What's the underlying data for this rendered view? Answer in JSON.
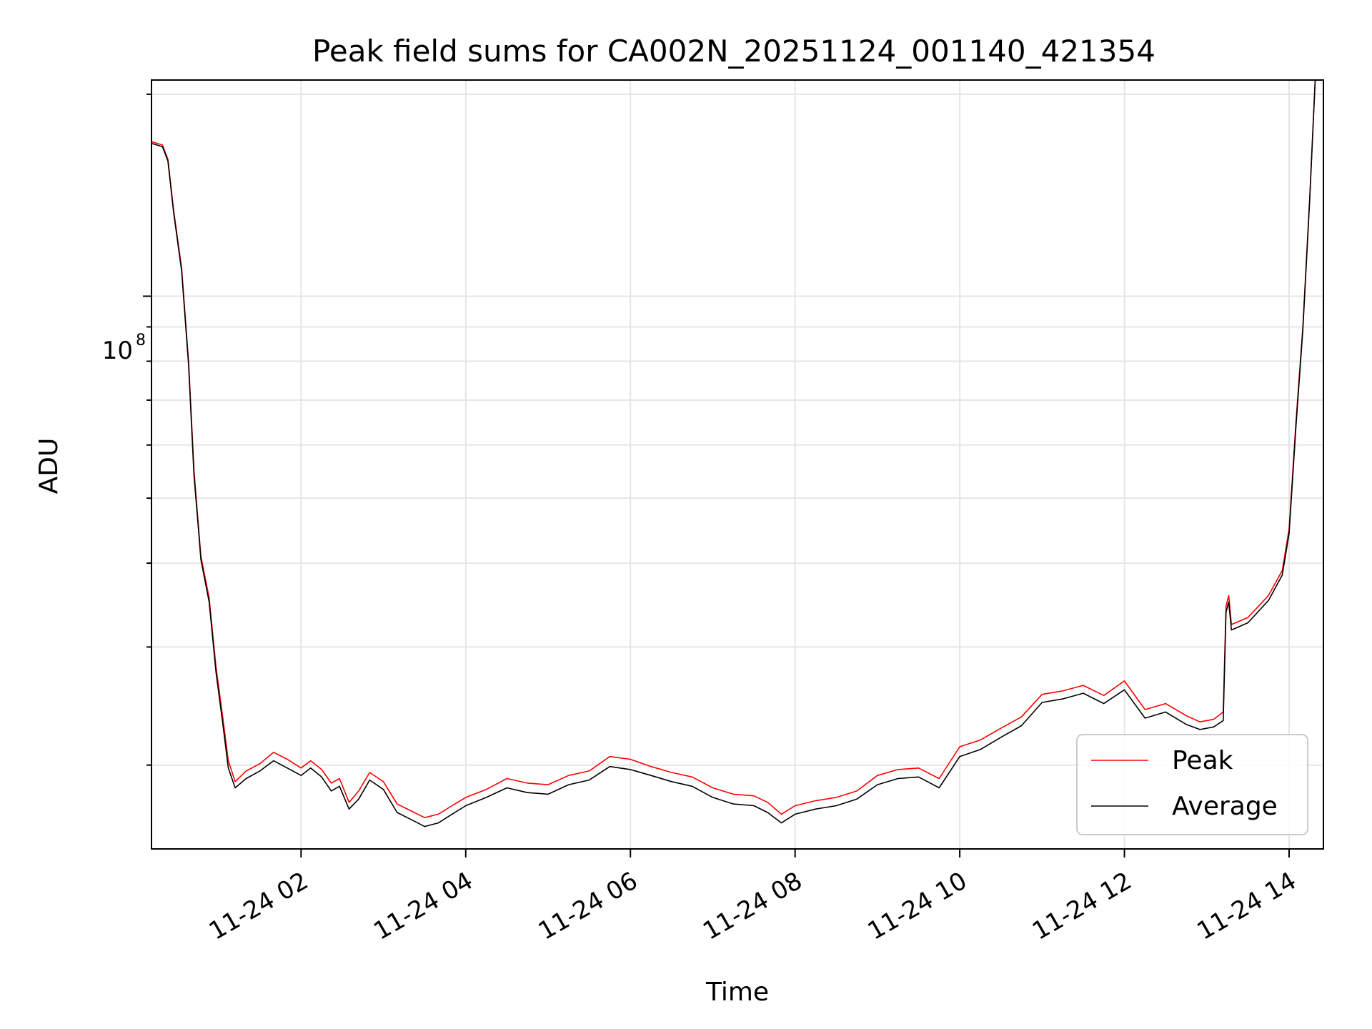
{
  "chart_data": {
    "type": "line",
    "title": "Peak field sums for CA002N_20251124_001140_421354",
    "xlabel": "Time",
    "ylabel": "ADU",
    "yscale": "log",
    "grid": true,
    "legend_position": "lower-right",
    "xlim": [
      "2025-11-24 00:11",
      "2025-11-24 14:25"
    ],
    "ylim": [
      15000000,
      210000000
    ],
    "x_ticks": [
      {
        "t": "2025-11-24 02:00",
        "label": "11-24 02"
      },
      {
        "t": "2025-11-24 04:00",
        "label": "11-24 04"
      },
      {
        "t": "2025-11-24 06:00",
        "label": "11-24 06"
      },
      {
        "t": "2025-11-24 08:00",
        "label": "11-24 08"
      },
      {
        "t": "2025-11-24 10:00",
        "label": "11-24 10"
      },
      {
        "t": "2025-11-24 12:00",
        "label": "11-24 12"
      },
      {
        "t": "2025-11-24 14:00",
        "label": "11-24 14"
      }
    ],
    "y_tick_label": {
      "base": "10",
      "exponent": "8"
    },
    "series": [
      {
        "name": "Peak",
        "color": "#ff0000",
        "points": [
          [
            "2025-11-24 00:11",
            170000000
          ],
          [
            "2025-11-24 00:19",
            168000000
          ],
          [
            "2025-11-24 00:23",
            160000000
          ],
          [
            "2025-11-24 00:27",
            135000000
          ],
          [
            "2025-11-24 00:33",
            110000000
          ],
          [
            "2025-11-24 00:38",
            80000000
          ],
          [
            "2025-11-24 00:42",
            55000000
          ],
          [
            "2025-11-24 00:45",
            46000000
          ],
          [
            "2025-11-24 00:47",
            41000000
          ],
          [
            "2025-11-24 00:53",
            35500000
          ],
          [
            "2025-11-24 00:58",
            28000000
          ],
          [
            "2025-11-24 01:03",
            23500000
          ],
          [
            "2025-11-24 01:07",
            20300000
          ],
          [
            "2025-11-24 01:12",
            18900000
          ],
          [
            "2025-11-24 01:20",
            19600000
          ],
          [
            "2025-11-24 01:30",
            20100000
          ],
          [
            "2025-11-24 01:40",
            20900000
          ],
          [
            "2025-11-24 01:50",
            20400000
          ],
          [
            "2025-11-24 02:00",
            19800000
          ],
          [
            "2025-11-24 02:07",
            20300000
          ],
          [
            "2025-11-24 02:15",
            19700000
          ],
          [
            "2025-11-24 02:22",
            18800000
          ],
          [
            "2025-11-24 02:28",
            19100000
          ],
          [
            "2025-11-24 02:35",
            17600000
          ],
          [
            "2025-11-24 02:42",
            18300000
          ],
          [
            "2025-11-24 02:50",
            19500000
          ],
          [
            "2025-11-24 03:00",
            18900000
          ],
          [
            "2025-11-24 03:10",
            17500000
          ],
          [
            "2025-11-24 03:20",
            17100000
          ],
          [
            "2025-11-24 03:30",
            16700000
          ],
          [
            "2025-11-24 03:40",
            16900000
          ],
          [
            "2025-11-24 03:50",
            17400000
          ],
          [
            "2025-11-24 04:00",
            17900000
          ],
          [
            "2025-11-24 04:15",
            18400000
          ],
          [
            "2025-11-24 04:30",
            19100000
          ],
          [
            "2025-11-24 04:45",
            18800000
          ],
          [
            "2025-11-24 05:00",
            18700000
          ],
          [
            "2025-11-24 05:15",
            19300000
          ],
          [
            "2025-11-24 05:30",
            19600000
          ],
          [
            "2025-11-24 05:45",
            20600000
          ],
          [
            "2025-11-24 06:00",
            20400000
          ],
          [
            "2025-11-24 06:15",
            19900000
          ],
          [
            "2025-11-24 06:30",
            19500000
          ],
          [
            "2025-11-24 06:45",
            19200000
          ],
          [
            "2025-11-24 07:00",
            18500000
          ],
          [
            "2025-11-24 07:15",
            18100000
          ],
          [
            "2025-11-24 07:30",
            18000000
          ],
          [
            "2025-11-24 07:40",
            17600000
          ],
          [
            "2025-11-24 07:50",
            16900000
          ],
          [
            "2025-11-24 08:00",
            17400000
          ],
          [
            "2025-11-24 08:15",
            17700000
          ],
          [
            "2025-11-24 08:30",
            17900000
          ],
          [
            "2025-11-24 08:45",
            18300000
          ],
          [
            "2025-11-24 09:00",
            19300000
          ],
          [
            "2025-11-24 09:15",
            19700000
          ],
          [
            "2025-11-24 09:30",
            19800000
          ],
          [
            "2025-11-24 09:45",
            19100000
          ],
          [
            "2025-11-24 10:00",
            21300000
          ],
          [
            "2025-11-24 10:15",
            21800000
          ],
          [
            "2025-11-24 10:30",
            22700000
          ],
          [
            "2025-11-24 10:45",
            23600000
          ],
          [
            "2025-11-24 11:00",
            25500000
          ],
          [
            "2025-11-24 11:15",
            25800000
          ],
          [
            "2025-11-24 11:30",
            26300000
          ],
          [
            "2025-11-24 11:45",
            25400000
          ],
          [
            "2025-11-24 12:00",
            26700000
          ],
          [
            "2025-11-24 12:15",
            24200000
          ],
          [
            "2025-11-24 12:30",
            24700000
          ],
          [
            "2025-11-24 12:45",
            23700000
          ],
          [
            "2025-11-24 12:55",
            23200000
          ],
          [
            "2025-11-24 13:05",
            23400000
          ],
          [
            "2025-11-24 13:12",
            24000000
          ],
          [
            "2025-11-24 13:14",
            34500000
          ],
          [
            "2025-11-24 13:16",
            35800000
          ],
          [
            "2025-11-24 13:18",
            32400000
          ],
          [
            "2025-11-24 13:30",
            33200000
          ],
          [
            "2025-11-24 13:45",
            35800000
          ],
          [
            "2025-11-24 13:55",
            39000000
          ],
          [
            "2025-11-24 14:00",
            45000000
          ],
          [
            "2025-11-24 14:05",
            65000000
          ],
          [
            "2025-11-24 14:10",
            90000000
          ],
          [
            "2025-11-24 14:15",
            140000000
          ],
          [
            "2025-11-24 14:19",
            210000000
          ]
        ]
      },
      {
        "name": "Average",
        "color": "#000000",
        "points": [
          [
            "2025-11-24 00:11",
            169000000
          ],
          [
            "2025-11-24 00:19",
            167000000
          ],
          [
            "2025-11-24 00:23",
            159000000
          ],
          [
            "2025-11-24 00:27",
            134000000
          ],
          [
            "2025-11-24 00:33",
            109000000
          ],
          [
            "2025-11-24 00:38",
            79000000
          ],
          [
            "2025-11-24 00:42",
            54000000
          ],
          [
            "2025-11-24 00:45",
            45500000
          ],
          [
            "2025-11-24 00:47",
            40500000
          ],
          [
            "2025-11-24 00:53",
            35000000
          ],
          [
            "2025-11-24 00:58",
            27500000
          ],
          [
            "2025-11-24 01:03",
            23000000
          ],
          [
            "2025-11-24 01:07",
            19800000
          ],
          [
            "2025-11-24 01:12",
            18500000
          ],
          [
            "2025-11-24 01:20",
            19100000
          ],
          [
            "2025-11-24 01:30",
            19600000
          ],
          [
            "2025-11-24 01:40",
            20300000
          ],
          [
            "2025-11-24 01:50",
            19800000
          ],
          [
            "2025-11-24 02:00",
            19300000
          ],
          [
            "2025-11-24 02:07",
            19800000
          ],
          [
            "2025-11-24 02:15",
            19200000
          ],
          [
            "2025-11-24 02:22",
            18300000
          ],
          [
            "2025-11-24 02:28",
            18600000
          ],
          [
            "2025-11-24 02:35",
            17200000
          ],
          [
            "2025-11-24 02:42",
            17800000
          ],
          [
            "2025-11-24 02:50",
            19000000
          ],
          [
            "2025-11-24 03:00",
            18400000
          ],
          [
            "2025-11-24 03:10",
            17000000
          ],
          [
            "2025-11-24 03:20",
            16600000
          ],
          [
            "2025-11-24 03:30",
            16200000
          ],
          [
            "2025-11-24 03:40",
            16400000
          ],
          [
            "2025-11-24 03:50",
            16900000
          ],
          [
            "2025-11-24 04:00",
            17400000
          ],
          [
            "2025-11-24 04:15",
            17900000
          ],
          [
            "2025-11-24 04:30",
            18500000
          ],
          [
            "2025-11-24 04:45",
            18200000
          ],
          [
            "2025-11-24 05:00",
            18100000
          ],
          [
            "2025-11-24 05:15",
            18700000
          ],
          [
            "2025-11-24 05:30",
            19000000
          ],
          [
            "2025-11-24 05:45",
            19900000
          ],
          [
            "2025-11-24 06:00",
            19700000
          ],
          [
            "2025-11-24 06:15",
            19300000
          ],
          [
            "2025-11-24 06:30",
            18900000
          ],
          [
            "2025-11-24 06:45",
            18600000
          ],
          [
            "2025-11-24 07:00",
            17900000
          ],
          [
            "2025-11-24 07:15",
            17500000
          ],
          [
            "2025-11-24 07:30",
            17400000
          ],
          [
            "2025-11-24 07:40",
            17000000
          ],
          [
            "2025-11-24 07:50",
            16400000
          ],
          [
            "2025-11-24 08:00",
            16900000
          ],
          [
            "2025-11-24 08:15",
            17200000
          ],
          [
            "2025-11-24 08:30",
            17400000
          ],
          [
            "2025-11-24 08:45",
            17800000
          ],
          [
            "2025-11-24 09:00",
            18700000
          ],
          [
            "2025-11-24 09:15",
            19100000
          ],
          [
            "2025-11-24 09:30",
            19200000
          ],
          [
            "2025-11-24 09:45",
            18500000
          ],
          [
            "2025-11-24 10:00",
            20600000
          ],
          [
            "2025-11-24 10:15",
            21100000
          ],
          [
            "2025-11-24 10:30",
            22000000
          ],
          [
            "2025-11-24 10:45",
            22900000
          ],
          [
            "2025-11-24 11:00",
            24800000
          ],
          [
            "2025-11-24 11:15",
            25100000
          ],
          [
            "2025-11-24 11:30",
            25600000
          ],
          [
            "2025-11-24 11:45",
            24700000
          ],
          [
            "2025-11-24 12:00",
            25900000
          ],
          [
            "2025-11-24 12:15",
            23500000
          ],
          [
            "2025-11-24 12:30",
            24000000
          ],
          [
            "2025-11-24 12:45",
            23000000
          ],
          [
            "2025-11-24 12:55",
            22600000
          ],
          [
            "2025-11-24 13:05",
            22800000
          ],
          [
            "2025-11-24 13:12",
            23300000
          ],
          [
            "2025-11-24 13:14",
            33800000
          ],
          [
            "2025-11-24 13:16",
            35000000
          ],
          [
            "2025-11-24 13:18",
            31800000
          ],
          [
            "2025-11-24 13:30",
            32600000
          ],
          [
            "2025-11-24 13:45",
            35200000
          ],
          [
            "2025-11-24 13:55",
            38400000
          ],
          [
            "2025-11-24 14:00",
            44300000
          ],
          [
            "2025-11-24 14:05",
            64000000
          ],
          [
            "2025-11-24 14:10",
            89000000
          ],
          [
            "2025-11-24 14:15",
            139000000
          ],
          [
            "2025-11-24 14:19",
            210000000
          ]
        ]
      }
    ]
  }
}
